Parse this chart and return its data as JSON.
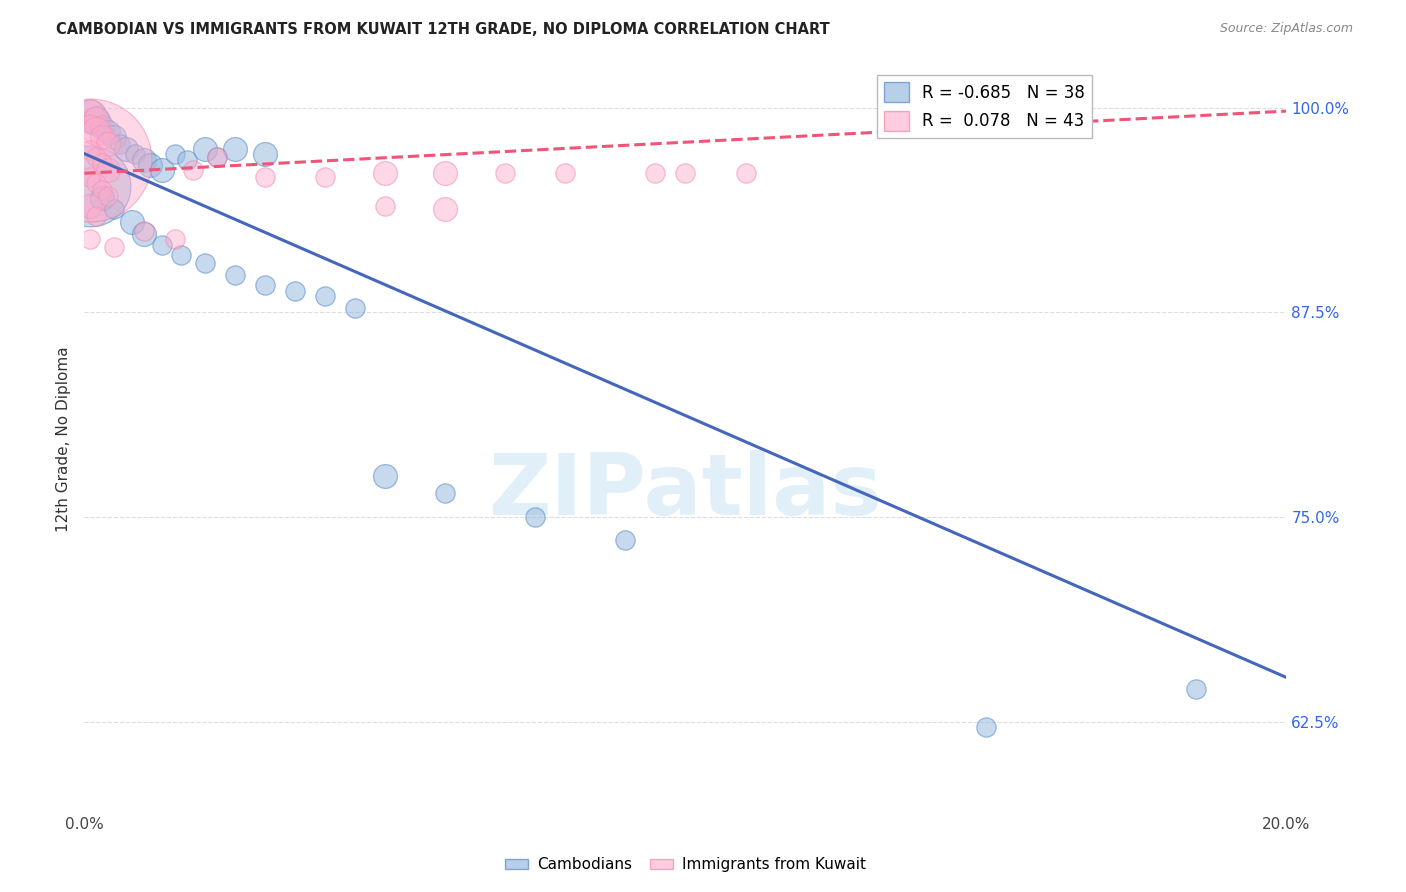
{
  "title": "CAMBODIAN VS IMMIGRANTS FROM KUWAIT 12TH GRADE, NO DIPLOMA CORRELATION CHART",
  "source": "Source: ZipAtlas.com",
  "ylabel": "12th Grade, No Diploma",
  "ytick_labels": [
    "100.0%",
    "87.5%",
    "75.0%",
    "62.5%"
  ],
  "ytick_values": [
    1.0,
    0.875,
    0.75,
    0.625
  ],
  "xmin": 0.0,
  "xmax": 0.2,
  "ymin": 0.57,
  "ymax": 1.025,
  "legend_blue_r": "R = -0.685",
  "legend_blue_n": "N = 38",
  "legend_pink_r": "R =  0.078",
  "legend_pink_n": "N = 43",
  "blue_fill": "#99bbdd",
  "blue_edge": "#5588cc",
  "pink_fill": "#ffaacc",
  "pink_edge": "#ee7799",
  "blue_line": "#4466bb",
  "pink_line": "#ee5577",
  "watermark_text": "ZIPatlas",
  "cambodian_points": [
    [
      0.001,
      0.995,
      7
    ],
    [
      0.002,
      0.992,
      6
    ],
    [
      0.003,
      0.988,
      5
    ],
    [
      0.004,
      0.985,
      5
    ],
    [
      0.005,
      0.982,
      5
    ],
    [
      0.006,
      0.978,
      4
    ],
    [
      0.007,
      0.975,
      5
    ],
    [
      0.0085,
      0.972,
      4
    ],
    [
      0.01,
      0.968,
      5
    ],
    [
      0.011,
      0.965,
      5
    ],
    [
      0.013,
      0.962,
      5
    ],
    [
      0.015,
      0.972,
      4
    ],
    [
      0.017,
      0.968,
      4
    ],
    [
      0.02,
      0.975,
      5
    ],
    [
      0.022,
      0.97,
      4
    ],
    [
      0.025,
      0.975,
      5
    ],
    [
      0.03,
      0.972,
      5
    ],
    [
      0.001,
      0.952,
      18
    ],
    [
      0.003,
      0.945,
      5
    ],
    [
      0.005,
      0.938,
      4
    ],
    [
      0.008,
      0.93,
      5
    ],
    [
      0.01,
      0.923,
      5
    ],
    [
      0.013,
      0.916,
      4
    ],
    [
      0.016,
      0.91,
      4
    ],
    [
      0.02,
      0.905,
      4
    ],
    [
      0.025,
      0.898,
      4
    ],
    [
      0.03,
      0.892,
      4
    ],
    [
      0.035,
      0.888,
      4
    ],
    [
      0.04,
      0.885,
      4
    ],
    [
      0.045,
      0.878,
      4
    ],
    [
      0.05,
      0.775,
      5
    ],
    [
      0.06,
      0.765,
      4
    ],
    [
      0.075,
      0.75,
      4
    ],
    [
      0.09,
      0.736,
      4
    ],
    [
      0.15,
      0.622,
      4
    ],
    [
      0.185,
      0.645,
      4
    ]
  ],
  "kuwait_points": [
    [
      0.001,
      0.998,
      5
    ],
    [
      0.002,
      0.994,
      5
    ],
    [
      0.001,
      0.99,
      4
    ],
    [
      0.002,
      0.986,
      6
    ],
    [
      0.003,
      0.982,
      5
    ],
    [
      0.004,
      0.978,
      5
    ],
    [
      0.001,
      0.974,
      4
    ],
    [
      0.002,
      0.97,
      4
    ],
    [
      0.003,
      0.966,
      4
    ],
    [
      0.004,
      0.962,
      5
    ],
    [
      0.001,
      0.958,
      4
    ],
    [
      0.002,
      0.954,
      4
    ],
    [
      0.003,
      0.95,
      4
    ],
    [
      0.004,
      0.946,
      4
    ],
    [
      0.001,
      0.94,
      5
    ],
    [
      0.002,
      0.934,
      4
    ],
    [
      0.001,
      0.968,
      28
    ],
    [
      0.001,
      0.92,
      4
    ],
    [
      0.005,
      0.915,
      4
    ],
    [
      0.01,
      0.925,
      4
    ],
    [
      0.015,
      0.92,
      4
    ],
    [
      0.018,
      0.962,
      4
    ],
    [
      0.022,
      0.97,
      4
    ],
    [
      0.03,
      0.958,
      4
    ],
    [
      0.04,
      0.958,
      4
    ],
    [
      0.05,
      0.96,
      5
    ],
    [
      0.06,
      0.96,
      5
    ],
    [
      0.07,
      0.96,
      4
    ],
    [
      0.08,
      0.96,
      4
    ],
    [
      0.095,
      0.96,
      4
    ],
    [
      0.1,
      0.96,
      4
    ],
    [
      0.11,
      0.96,
      4
    ],
    [
      0.05,
      0.94,
      4
    ],
    [
      0.06,
      0.938,
      5
    ]
  ],
  "blue_line_x": [
    0.0,
    0.2
  ],
  "blue_line_y": [
    0.972,
    0.652
  ],
  "pink_line_x": [
    0.0,
    0.2
  ],
  "pink_line_y": [
    0.96,
    0.998
  ]
}
